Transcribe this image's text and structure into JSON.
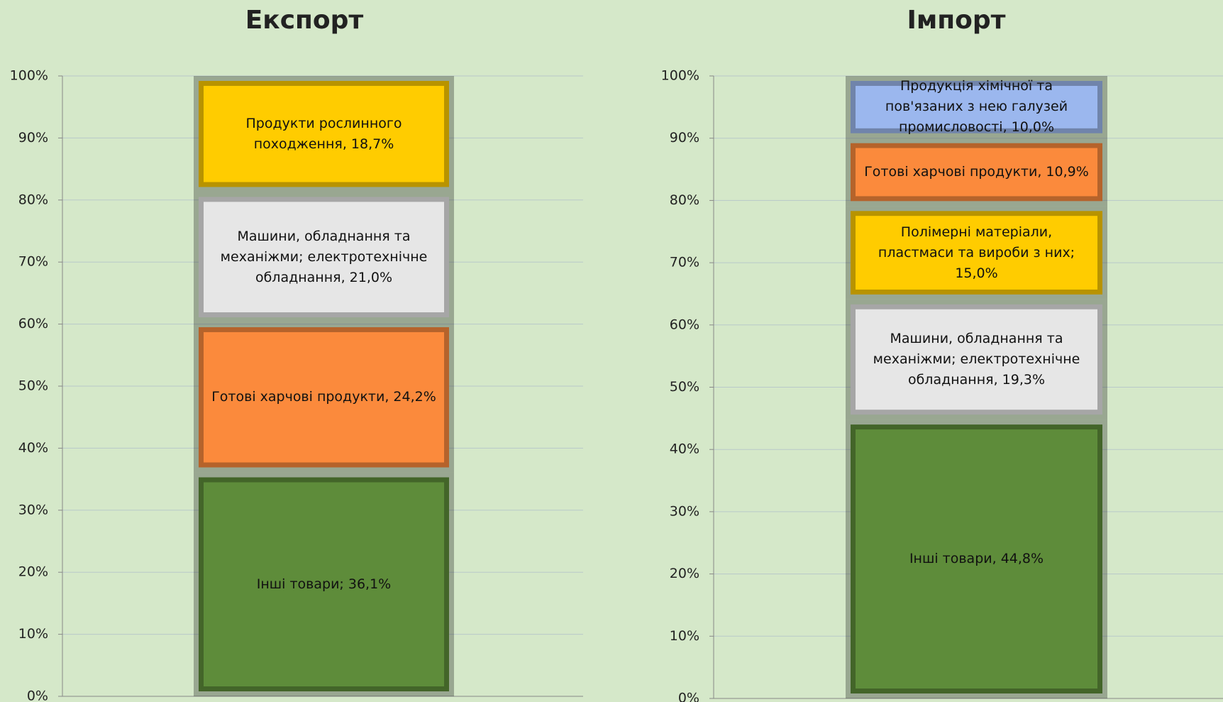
{
  "chart_data": [
    {
      "type": "stacked_bar",
      "title": "Експорт",
      "ylim": [
        0,
        100
      ],
      "yticks": [
        {
          "value": 0,
          "label": "0%"
        },
        {
          "value": 10,
          "label": "10%"
        },
        {
          "value": 20,
          "label": "20%"
        },
        {
          "value": 30,
          "label": "30%"
        },
        {
          "value": 40,
          "label": "40%"
        },
        {
          "value": 50,
          "label": "50%"
        },
        {
          "value": 60,
          "label": "60%"
        },
        {
          "value": 70,
          "label": "70%"
        },
        {
          "value": 80,
          "label": "80%"
        },
        {
          "value": 90,
          "label": "90%"
        },
        {
          "value": 100,
          "label": "100%"
        }
      ],
      "grid": true,
      "series": [
        {
          "color": "#5e8c3a",
          "values": [
            36.1
          ],
          "value_labels": [
            "Інші товари; 36,1%"
          ]
        },
        {
          "color": "#fb8a3c",
          "values": [
            24.2
          ],
          "value_labels": [
            "Готові харчові продукти, 24,2%"
          ]
        },
        {
          "color": "#e6e6e6",
          "values": [
            21.0
          ],
          "value_labels": [
            "Машини, обладнання та механіжми; електротехнічне обладнання, 21,0%"
          ]
        },
        {
          "color": "#ffcc00",
          "values": [
            18.7
          ],
          "value_labels": [
            "Продукти рослинного походження, 18,7%"
          ]
        }
      ]
    },
    {
      "type": "stacked_bar",
      "title": "Імпорт",
      "ylim": [
        0,
        100
      ],
      "yticks": [
        {
          "value": 0,
          "label": "0%"
        },
        {
          "value": 10,
          "label": "10%"
        },
        {
          "value": 20,
          "label": "20%"
        },
        {
          "value": 30,
          "label": "30%"
        },
        {
          "value": 40,
          "label": "40%"
        },
        {
          "value": 50,
          "label": "50%"
        },
        {
          "value": 60,
          "label": "60%"
        },
        {
          "value": 70,
          "label": "70%"
        },
        {
          "value": 80,
          "label": "80%"
        },
        {
          "value": 90,
          "label": "90%"
        },
        {
          "value": 100,
          "label": "100%"
        }
      ],
      "grid": true,
      "series": [
        {
          "color": "#5e8c3a",
          "values": [
            44.8
          ],
          "value_labels": [
            "Інші товари, 44,8%"
          ]
        },
        {
          "color": "#e6e6e6",
          "values": [
            19.3
          ],
          "value_labels": [
            "Машини, обладнання та механіжми; електротехнічне обладнання, 19,3%"
          ]
        },
        {
          "color": "#ffcc00",
          "values": [
            15.0
          ],
          "value_labels": [
            "Полімерні матеріали, пластмаси та вироби з них; 15,0%"
          ]
        },
        {
          "color": "#fb8a3c",
          "values": [
            10.9
          ],
          "value_labels": [
            "Готові харчові продукти, 10,9%"
          ]
        },
        {
          "color": "#9bb7ee",
          "values": [
            10.0
          ],
          "value_labels": [
            "Продукція хімічної та пов'язаних з нею галузей промисловості, 10,0%"
          ]
        }
      ]
    }
  ]
}
